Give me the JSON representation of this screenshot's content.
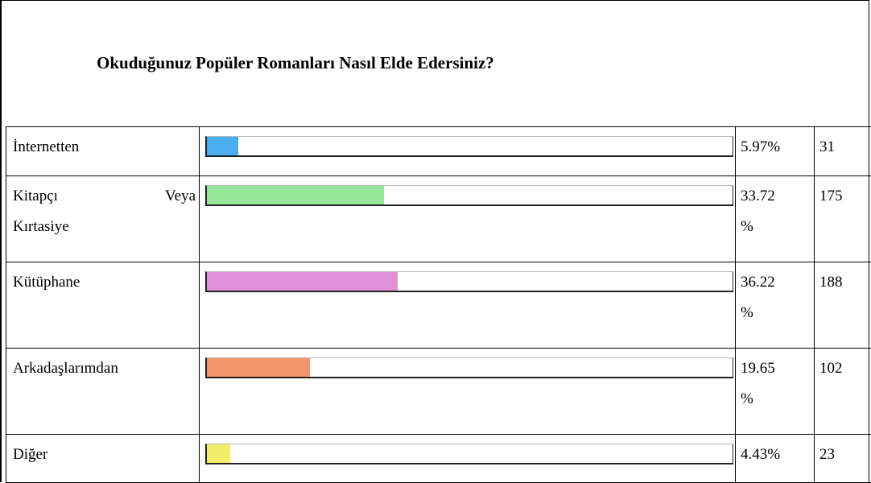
{
  "title": "Okuduğunuz Popüler Romanları Nasıl Elde Edersiniz?",
  "rows": [
    {
      "label": "İnternetten",
      "label_line2": "",
      "percent_line1": "5.97%",
      "percent_line2": "",
      "count": "31",
      "fraction": 0.0597,
      "color": "#4aaef0"
    },
    {
      "label": "Kitapçı",
      "label_tail": "Veya",
      "label_line2": "Kırtasiye",
      "percent_line1": "33.72",
      "percent_line2": "%",
      "count": "175",
      "fraction": 0.3372,
      "color": "#98e698"
    },
    {
      "label": "Kütüphane",
      "label_line2": "",
      "percent_line1": "36.22",
      "percent_line2": "%",
      "count": "188",
      "fraction": 0.3622,
      "color": "#df90d9"
    },
    {
      "label": "Arkadaşlarımdan",
      "label_line2": "",
      "percent_line1": "19.65",
      "percent_line2": "%",
      "count": "102",
      "fraction": 0.1965,
      "color": "#f2956a"
    },
    {
      "label": "Diğer",
      "label_line2": "",
      "percent_line1": "4.43%",
      "percent_line2": "",
      "count": "23",
      "fraction": 0.0443,
      "color": "#f3ee6a"
    }
  ]
}
